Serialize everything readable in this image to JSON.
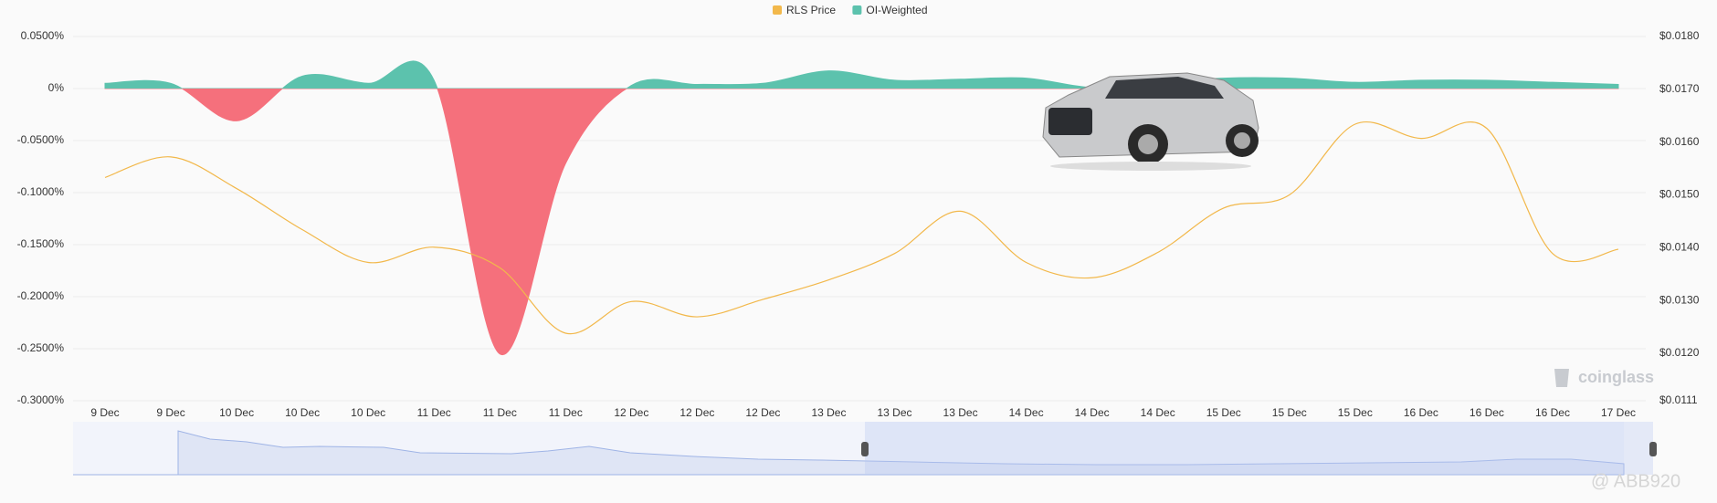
{
  "chart_data": {
    "type": "area-line",
    "categories": [
      "9 Dec",
      "9 Dec",
      "10 Dec",
      "10 Dec",
      "10 Dec",
      "11 Dec",
      "11 Dec",
      "11 Dec",
      "12 Dec",
      "12 Dec",
      "12 Dec",
      "13 Dec",
      "13 Dec",
      "13 Dec",
      "14 Dec",
      "14 Dec",
      "14 Dec",
      "15 Dec",
      "15 Dec",
      "15 Dec",
      "16 Dec",
      "16 Dec",
      "16 Dec",
      "17 Dec"
    ],
    "series": [
      {
        "name": "RLS Price",
        "color": "#f2b84b",
        "axis": "y2",
        "values": [
          0.01533,
          0.01572,
          0.01512,
          0.01434,
          0.01372,
          0.01401,
          0.01362,
          0.01238,
          0.01298,
          0.01269,
          0.01302,
          0.01339,
          0.01389,
          0.01469,
          0.01372,
          0.01343,
          0.01391,
          0.01475,
          0.015,
          0.01634,
          0.01607,
          0.01626,
          0.01389,
          0.01397
        ]
      },
      {
        "name": "OI-Weighted",
        "color": "#5cc2ad",
        "negative_color": "#f5707c",
        "axis": "y",
        "values": [
          0.005,
          0.005,
          -0.031,
          0.012,
          0.005,
          0.008,
          -0.255,
          -0.072,
          0.003,
          0.004,
          0.005,
          0.017,
          0.008,
          0.009,
          0.01,
          0.001,
          0.005,
          0.01,
          0.01,
          0.006,
          0.008,
          0.008,
          0.006,
          0.004
        ]
      }
    ],
    "ylim": [
      -0.3,
      0.05
    ],
    "yticks": [
      {
        "value": 0.05,
        "label": "0.0500%"
      },
      {
        "value": 0,
        "label": "0%"
      },
      {
        "value": -0.05,
        "label": "-0.0500%"
      },
      {
        "value": -0.1,
        "label": "-0.1000%"
      },
      {
        "value": -0.15,
        "label": "-0.1500%"
      },
      {
        "value": -0.2,
        "label": "-0.2000%"
      },
      {
        "value": -0.25,
        "label": "-0.2500%"
      },
      {
        "value": -0.3,
        "label": "-0.3000%"
      }
    ],
    "y2lim": [
      0.0111,
      0.018
    ],
    "y2ticks": [
      {
        "value": 0.018,
        "label": "$0.0180"
      },
      {
        "value": 0.017,
        "label": "$0.0170"
      },
      {
        "value": 0.016,
        "label": "$0.0160"
      },
      {
        "value": 0.015,
        "label": "$0.0150"
      },
      {
        "value": 0.014,
        "label": "$0.0140"
      },
      {
        "value": 0.013,
        "label": "$0.0130"
      },
      {
        "value": 0.012,
        "label": "$0.0120"
      },
      {
        "value": 0.0111,
        "label": "$0.0111"
      }
    ],
    "grid": true,
    "legend": "top",
    "brand": "coinglass",
    "watermark": "@ ABB920"
  }
}
